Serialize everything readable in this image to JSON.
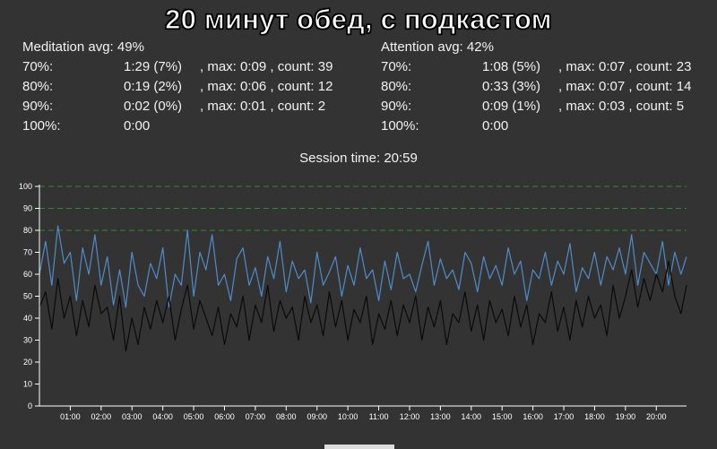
{
  "title": "20 минут обед, с подкастом",
  "meditation": {
    "avg": "Meditation avg: 49%",
    "rows": [
      {
        "label": "70%:",
        "time": "1:29 (7%)",
        "extra": ", max: 0:09 , count: 39"
      },
      {
        "label": "80%:",
        "time": "0:19 (2%)",
        "extra": ", max: 0:06 , count: 12"
      },
      {
        "label": "90%:",
        "time": "0:02 (0%)",
        "extra": ", max: 0:01 , count: 2"
      },
      {
        "label": "100%:",
        "time": "0:00",
        "extra": ""
      }
    ]
  },
  "attention": {
    "avg": "Attention avg: 42%",
    "rows": [
      {
        "label": "70%:",
        "time": "1:08 (5%)",
        "extra": ", max: 0:07 , count: 23"
      },
      {
        "label": "80%:",
        "time": "0:33 (3%)",
        "extra": ", max: 0:07 , count: 14"
      },
      {
        "label": "90%:",
        "time": "0:09 (1%)",
        "extra": ", max: 0:03 , count: 5"
      },
      {
        "label": "100%:",
        "time": "0:00",
        "extra": ""
      }
    ]
  },
  "session_time": "Session time: 20:59",
  "chart_data": {
    "type": "line",
    "x_unit": "minutes",
    "xlim": [
      0,
      20.98
    ],
    "ylim": [
      0,
      100
    ],
    "y_ticks": [
      0,
      10,
      20,
      30,
      40,
      50,
      60,
      70,
      80,
      90,
      100
    ],
    "x_ticks": [
      {
        "minute": 1,
        "label": "01:00"
      },
      {
        "minute": 2,
        "label": "02:00"
      },
      {
        "minute": 3,
        "label": "03:00"
      },
      {
        "minute": 4,
        "label": "04:00"
      },
      {
        "minute": 5,
        "label": "05:00"
      },
      {
        "minute": 6,
        "label": "06:00"
      },
      {
        "minute": 7,
        "label": "07:00"
      },
      {
        "minute": 8,
        "label": "08:00"
      },
      {
        "minute": 9,
        "label": "09:00"
      },
      {
        "minute": 10,
        "label": "10:00"
      },
      {
        "minute": 11,
        "label": "11:00"
      },
      {
        "minute": 12,
        "label": "12:00"
      },
      {
        "minute": 13,
        "label": "13:00"
      },
      {
        "minute": 14,
        "label": "14:00"
      },
      {
        "minute": 15,
        "label": "15:00"
      },
      {
        "minute": 16,
        "label": "16:00"
      },
      {
        "minute": 17,
        "label": "17:00"
      },
      {
        "minute": 18,
        "label": "18:00"
      },
      {
        "minute": 19,
        "label": "19:00"
      },
      {
        "minute": 20,
        "label": "20:00"
      }
    ],
    "threshold_lines": [
      80,
      90,
      100
    ],
    "threshold_color": "#2e8b2e",
    "series": [
      {
        "color": "#4f8cc9",
        "points": [
          [
            0,
            60
          ],
          [
            0.2,
            75
          ],
          [
            0.4,
            55
          ],
          [
            0.6,
            82
          ],
          [
            0.8,
            65
          ],
          [
            1.0,
            70
          ],
          [
            1.2,
            48
          ],
          [
            1.4,
            72
          ],
          [
            1.6,
            60
          ],
          [
            1.8,
            78
          ],
          [
            2.0,
            55
          ],
          [
            2.2,
            68
          ],
          [
            2.4,
            46
          ],
          [
            2.6,
            62
          ],
          [
            2.8,
            45
          ],
          [
            3.0,
            70
          ],
          [
            3.2,
            55
          ],
          [
            3.4,
            50
          ],
          [
            3.6,
            65
          ],
          [
            3.8,
            58
          ],
          [
            4.0,
            72
          ],
          [
            4.2,
            45
          ],
          [
            4.4,
            60
          ],
          [
            4.6,
            55
          ],
          [
            4.8,
            80
          ],
          [
            5.0,
            50
          ],
          [
            5.2,
            70
          ],
          [
            5.4,
            62
          ],
          [
            5.6,
            78
          ],
          [
            5.8,
            55
          ],
          [
            6.0,
            60
          ],
          [
            6.2,
            48
          ],
          [
            6.4,
            67
          ],
          [
            6.6,
            72
          ],
          [
            6.8,
            55
          ],
          [
            7.0,
            63
          ],
          [
            7.2,
            50
          ],
          [
            7.4,
            68
          ],
          [
            7.6,
            58
          ],
          [
            7.8,
            75
          ],
          [
            8.0,
            52
          ],
          [
            8.2,
            66
          ],
          [
            8.4,
            58
          ],
          [
            8.6,
            62
          ],
          [
            8.8,
            47
          ],
          [
            9.0,
            70
          ],
          [
            9.2,
            55
          ],
          [
            9.4,
            61
          ],
          [
            9.6,
            68
          ],
          [
            9.8,
            50
          ],
          [
            10.0,
            64
          ],
          [
            10.2,
            55
          ],
          [
            10.4,
            72
          ],
          [
            10.6,
            58
          ],
          [
            10.8,
            62
          ],
          [
            11.0,
            48
          ],
          [
            11.2,
            66
          ],
          [
            11.4,
            53
          ],
          [
            11.6,
            70
          ],
          [
            11.8,
            58
          ],
          [
            12.0,
            60
          ],
          [
            12.2,
            52
          ],
          [
            12.4,
            64
          ],
          [
            12.6,
            75
          ],
          [
            12.8,
            55
          ],
          [
            13.0,
            67
          ],
          [
            13.2,
            58
          ],
          [
            13.4,
            62
          ],
          [
            13.6,
            53
          ],
          [
            13.8,
            70
          ],
          [
            14.0,
            65
          ],
          [
            14.2,
            52
          ],
          [
            14.4,
            68
          ],
          [
            14.6,
            58
          ],
          [
            14.8,
            64
          ],
          [
            15.0,
            55
          ],
          [
            15.2,
            72
          ],
          [
            15.4,
            60
          ],
          [
            15.6,
            66
          ],
          [
            15.8,
            48
          ],
          [
            16.0,
            62
          ],
          [
            16.2,
            58
          ],
          [
            16.4,
            70
          ],
          [
            16.6,
            55
          ],
          [
            16.8,
            66
          ],
          [
            17.0,
            60
          ],
          [
            17.2,
            74
          ],
          [
            17.4,
            52
          ],
          [
            17.6,
            63
          ],
          [
            17.8,
            58
          ],
          [
            18.0,
            70
          ],
          [
            18.2,
            55
          ],
          [
            18.4,
            68
          ],
          [
            18.6,
            62
          ],
          [
            18.8,
            72
          ],
          [
            19.0,
            60
          ],
          [
            19.2,
            78
          ],
          [
            19.4,
            55
          ],
          [
            19.6,
            70
          ],
          [
            19.8,
            65
          ],
          [
            20.0,
            60
          ],
          [
            20.2,
            75
          ],
          [
            20.4,
            55
          ],
          [
            20.6,
            70
          ],
          [
            20.8,
            60
          ],
          [
            20.98,
            68
          ]
        ]
      },
      {
        "color": "#0a0a0a",
        "points": [
          [
            0,
            45
          ],
          [
            0.2,
            52
          ],
          [
            0.4,
            35
          ],
          [
            0.6,
            58
          ],
          [
            0.8,
            40
          ],
          [
            1.0,
            50
          ],
          [
            1.2,
            32
          ],
          [
            1.4,
            48
          ],
          [
            1.6,
            36
          ],
          [
            1.8,
            55
          ],
          [
            2.0,
            42
          ],
          [
            2.2,
            45
          ],
          [
            2.4,
            30
          ],
          [
            2.6,
            50
          ],
          [
            2.8,
            25
          ],
          [
            3.0,
            40
          ],
          [
            3.2,
            28
          ],
          [
            3.4,
            45
          ],
          [
            3.6,
            35
          ],
          [
            3.8,
            48
          ],
          [
            4.0,
            38
          ],
          [
            4.2,
            50
          ],
          [
            4.4,
            30
          ],
          [
            4.6,
            44
          ],
          [
            4.8,
            55
          ],
          [
            5.0,
            35
          ],
          [
            5.2,
            48
          ],
          [
            5.4,
            40
          ],
          [
            5.6,
            32
          ],
          [
            5.8,
            45
          ],
          [
            6.0,
            28
          ],
          [
            6.2,
            42
          ],
          [
            6.4,
            36
          ],
          [
            6.6,
            50
          ],
          [
            6.8,
            30
          ],
          [
            7.0,
            46
          ],
          [
            7.2,
            38
          ],
          [
            7.4,
            55
          ],
          [
            7.6,
            34
          ],
          [
            7.8,
            48
          ],
          [
            8.0,
            40
          ],
          [
            8.2,
            45
          ],
          [
            8.4,
            30
          ],
          [
            8.6,
            50
          ],
          [
            8.8,
            38
          ],
          [
            9.0,
            46
          ],
          [
            9.2,
            32
          ],
          [
            9.4,
            52
          ],
          [
            9.6,
            36
          ],
          [
            9.8,
            48
          ],
          [
            10.0,
            30
          ],
          [
            10.2,
            44
          ],
          [
            10.4,
            38
          ],
          [
            10.6,
            50
          ],
          [
            10.8,
            28
          ],
          [
            11.0,
            42
          ],
          [
            11.2,
            35
          ],
          [
            11.4,
            48
          ],
          [
            11.6,
            32
          ],
          [
            11.8,
            46
          ],
          [
            12.0,
            38
          ],
          [
            12.2,
            50
          ],
          [
            12.4,
            30
          ],
          [
            12.6,
            45
          ],
          [
            12.8,
            36
          ],
          [
            13.0,
            48
          ],
          [
            13.2,
            28
          ],
          [
            13.4,
            42
          ],
          [
            13.6,
            38
          ],
          [
            13.8,
            52
          ],
          [
            14.0,
            34
          ],
          [
            14.2,
            46
          ],
          [
            14.4,
            30
          ],
          [
            14.6,
            48
          ],
          [
            14.8,
            38
          ],
          [
            15.0,
            44
          ],
          [
            15.2,
            32
          ],
          [
            15.4,
            50
          ],
          [
            15.6,
            36
          ],
          [
            15.8,
            46
          ],
          [
            16.0,
            28
          ],
          [
            16.2,
            42
          ],
          [
            16.4,
            38
          ],
          [
            16.6,
            52
          ],
          [
            16.8,
            34
          ],
          [
            17.0,
            45
          ],
          [
            17.2,
            30
          ],
          [
            17.4,
            48
          ],
          [
            17.6,
            36
          ],
          [
            17.8,
            50
          ],
          [
            18.0,
            40
          ],
          [
            18.2,
            46
          ],
          [
            18.4,
            32
          ],
          [
            18.6,
            55
          ],
          [
            18.8,
            40
          ],
          [
            19.0,
            50
          ],
          [
            19.2,
            62
          ],
          [
            19.4,
            45
          ],
          [
            19.6,
            58
          ],
          [
            19.8,
            48
          ],
          [
            20.0,
            60
          ],
          [
            20.2,
            52
          ],
          [
            20.4,
            66
          ],
          [
            20.6,
            50
          ],
          [
            20.8,
            42
          ],
          [
            20.98,
            55
          ]
        ]
      }
    ]
  }
}
